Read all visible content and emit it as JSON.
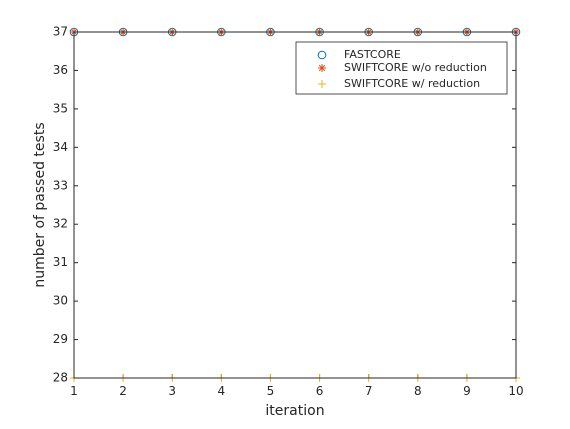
{
  "chart_data": {
    "type": "scatter",
    "title": "",
    "xlabel": "iteration",
    "ylabel": "number of passed tests",
    "xlim": [
      1,
      10
    ],
    "ylim": [
      28,
      37
    ],
    "xticks": [
      1,
      2,
      3,
      4,
      5,
      6,
      7,
      8,
      9,
      10
    ],
    "yticks": [
      28,
      29,
      30,
      31,
      32,
      33,
      34,
      35,
      36,
      37
    ],
    "grid": false,
    "legend_position": "top-right",
    "x": [
      1,
      2,
      3,
      4,
      5,
      6,
      7,
      8,
      9,
      10
    ],
    "series": [
      {
        "name": "FASTCORE",
        "marker": "circle",
        "color": "#0072BD",
        "values": [
          37,
          37,
          37,
          37,
          37,
          37,
          37,
          37,
          37,
          37
        ]
      },
      {
        "name": "SWIFTCORE w/o reduction",
        "marker": "asterisk",
        "color": "#D95319",
        "values": [
          37,
          37,
          37,
          37,
          37,
          37,
          37,
          37,
          37,
          37
        ]
      },
      {
        "name": "SWIFTCORE w/ reduction",
        "marker": "plus",
        "color": "#EDB120",
        "values": [
          28,
          28,
          28,
          28,
          28,
          28,
          28,
          28,
          28,
          28
        ]
      }
    ]
  }
}
